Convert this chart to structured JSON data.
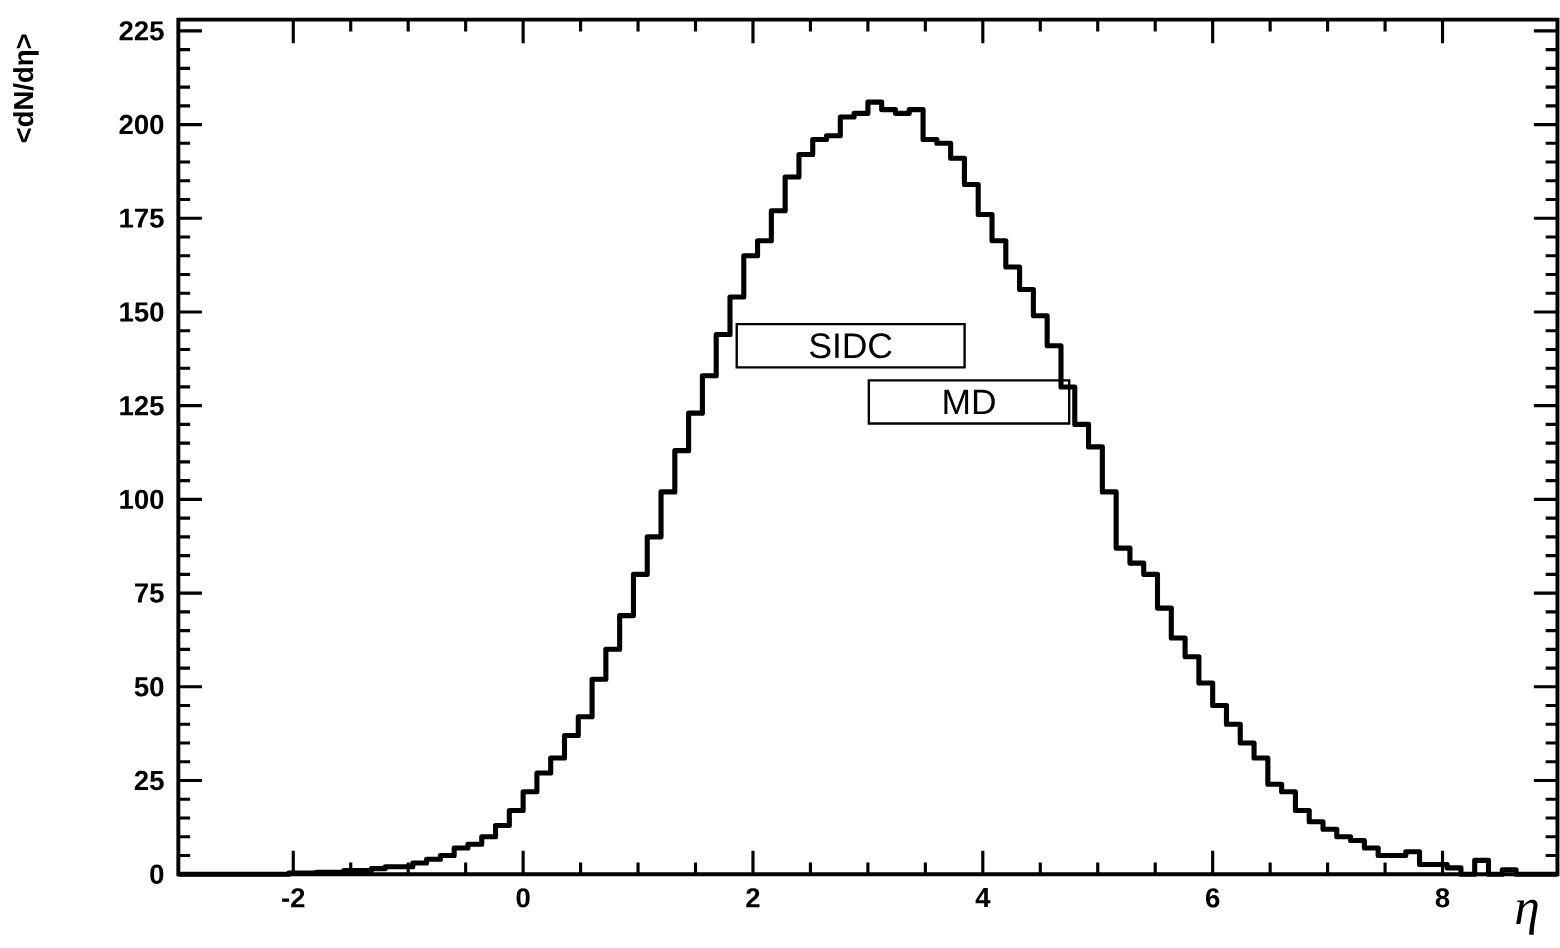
{
  "chart_data": {
    "type": "histogram",
    "xlabel": "η",
    "ylabel": "<dN/dη>",
    "color": "#000000",
    "xlim": [
      -3,
      9
    ],
    "ylim": [
      0,
      228
    ],
    "xticks": [
      -2,
      0,
      2,
      4,
      6,
      8
    ],
    "yticks": [
      0,
      25,
      50,
      75,
      100,
      125,
      150,
      175,
      200,
      225
    ],
    "annotations": [
      "SIDC",
      "MD"
    ],
    "bins": [
      -3,
      -2.88,
      -2.76,
      -2.64,
      -2.52,
      -2.4,
      -2.28,
      -2.16,
      -2.04,
      -1.92,
      -1.8,
      -1.68,
      -1.56,
      -1.44,
      -1.32,
      -1.2,
      -1.08,
      -0.96,
      -0.84,
      -0.72,
      -0.6,
      -0.48,
      -0.36,
      -0.24,
      -0.12,
      0,
      0.12,
      0.24,
      0.36,
      0.48,
      0.6,
      0.72,
      0.84,
      0.96,
      1.08,
      1.2,
      1.32,
      1.44,
      1.56,
      1.68,
      1.8,
      1.92,
      2.04,
      2.16,
      2.28,
      2.4,
      2.52,
      2.64,
      2.76,
      2.88,
      3,
      3.12,
      3.24,
      3.36,
      3.48,
      3.6,
      3.72,
      3.84,
      3.96,
      4.08,
      4.2,
      4.32,
      4.44,
      4.56,
      4.68,
      4.8,
      4.92,
      5.04,
      5.16,
      5.28,
      5.4,
      5.52,
      5.64,
      5.76,
      5.88,
      6,
      6.12,
      6.24,
      6.36,
      6.48,
      6.6,
      6.72,
      6.84,
      6.96,
      7.08,
      7.2,
      7.32,
      7.44,
      7.56,
      7.68,
      7.8,
      7.92,
      8.04,
      8.16,
      8.28,
      8.4,
      8.52,
      8.64,
      8.76,
      8.88,
      9
    ],
    "values": [
      0,
      0,
      0,
      0,
      0,
      0,
      0,
      0,
      0.3,
      0.3,
      0.5,
      0.5,
      1,
      1,
      1.5,
      2,
      2,
      3,
      4,
      5,
      7,
      8,
      10,
      13,
      17,
      22,
      27,
      31,
      37,
      42,
      52,
      60,
      69,
      80,
      90,
      102,
      113,
      123,
      133,
      144,
      154,
      165,
      169,
      177,
      186,
      192,
      196,
      197,
      202,
      203,
      206,
      204,
      203,
      204,
      196,
      195,
      191,
      184,
      176,
      169,
      162,
      156,
      149,
      141,
      130,
      120,
      114,
      102,
      87,
      83,
      80,
      71,
      63,
      58,
      51,
      45,
      40,
      35,
      31,
      24,
      22,
      17,
      14,
      12,
      10,
      9,
      7,
      5,
      5,
      6,
      2.6,
      2.6,
      1.7,
      0,
      3.7,
      0,
      1.2,
      0,
      0,
      0
    ]
  }
}
